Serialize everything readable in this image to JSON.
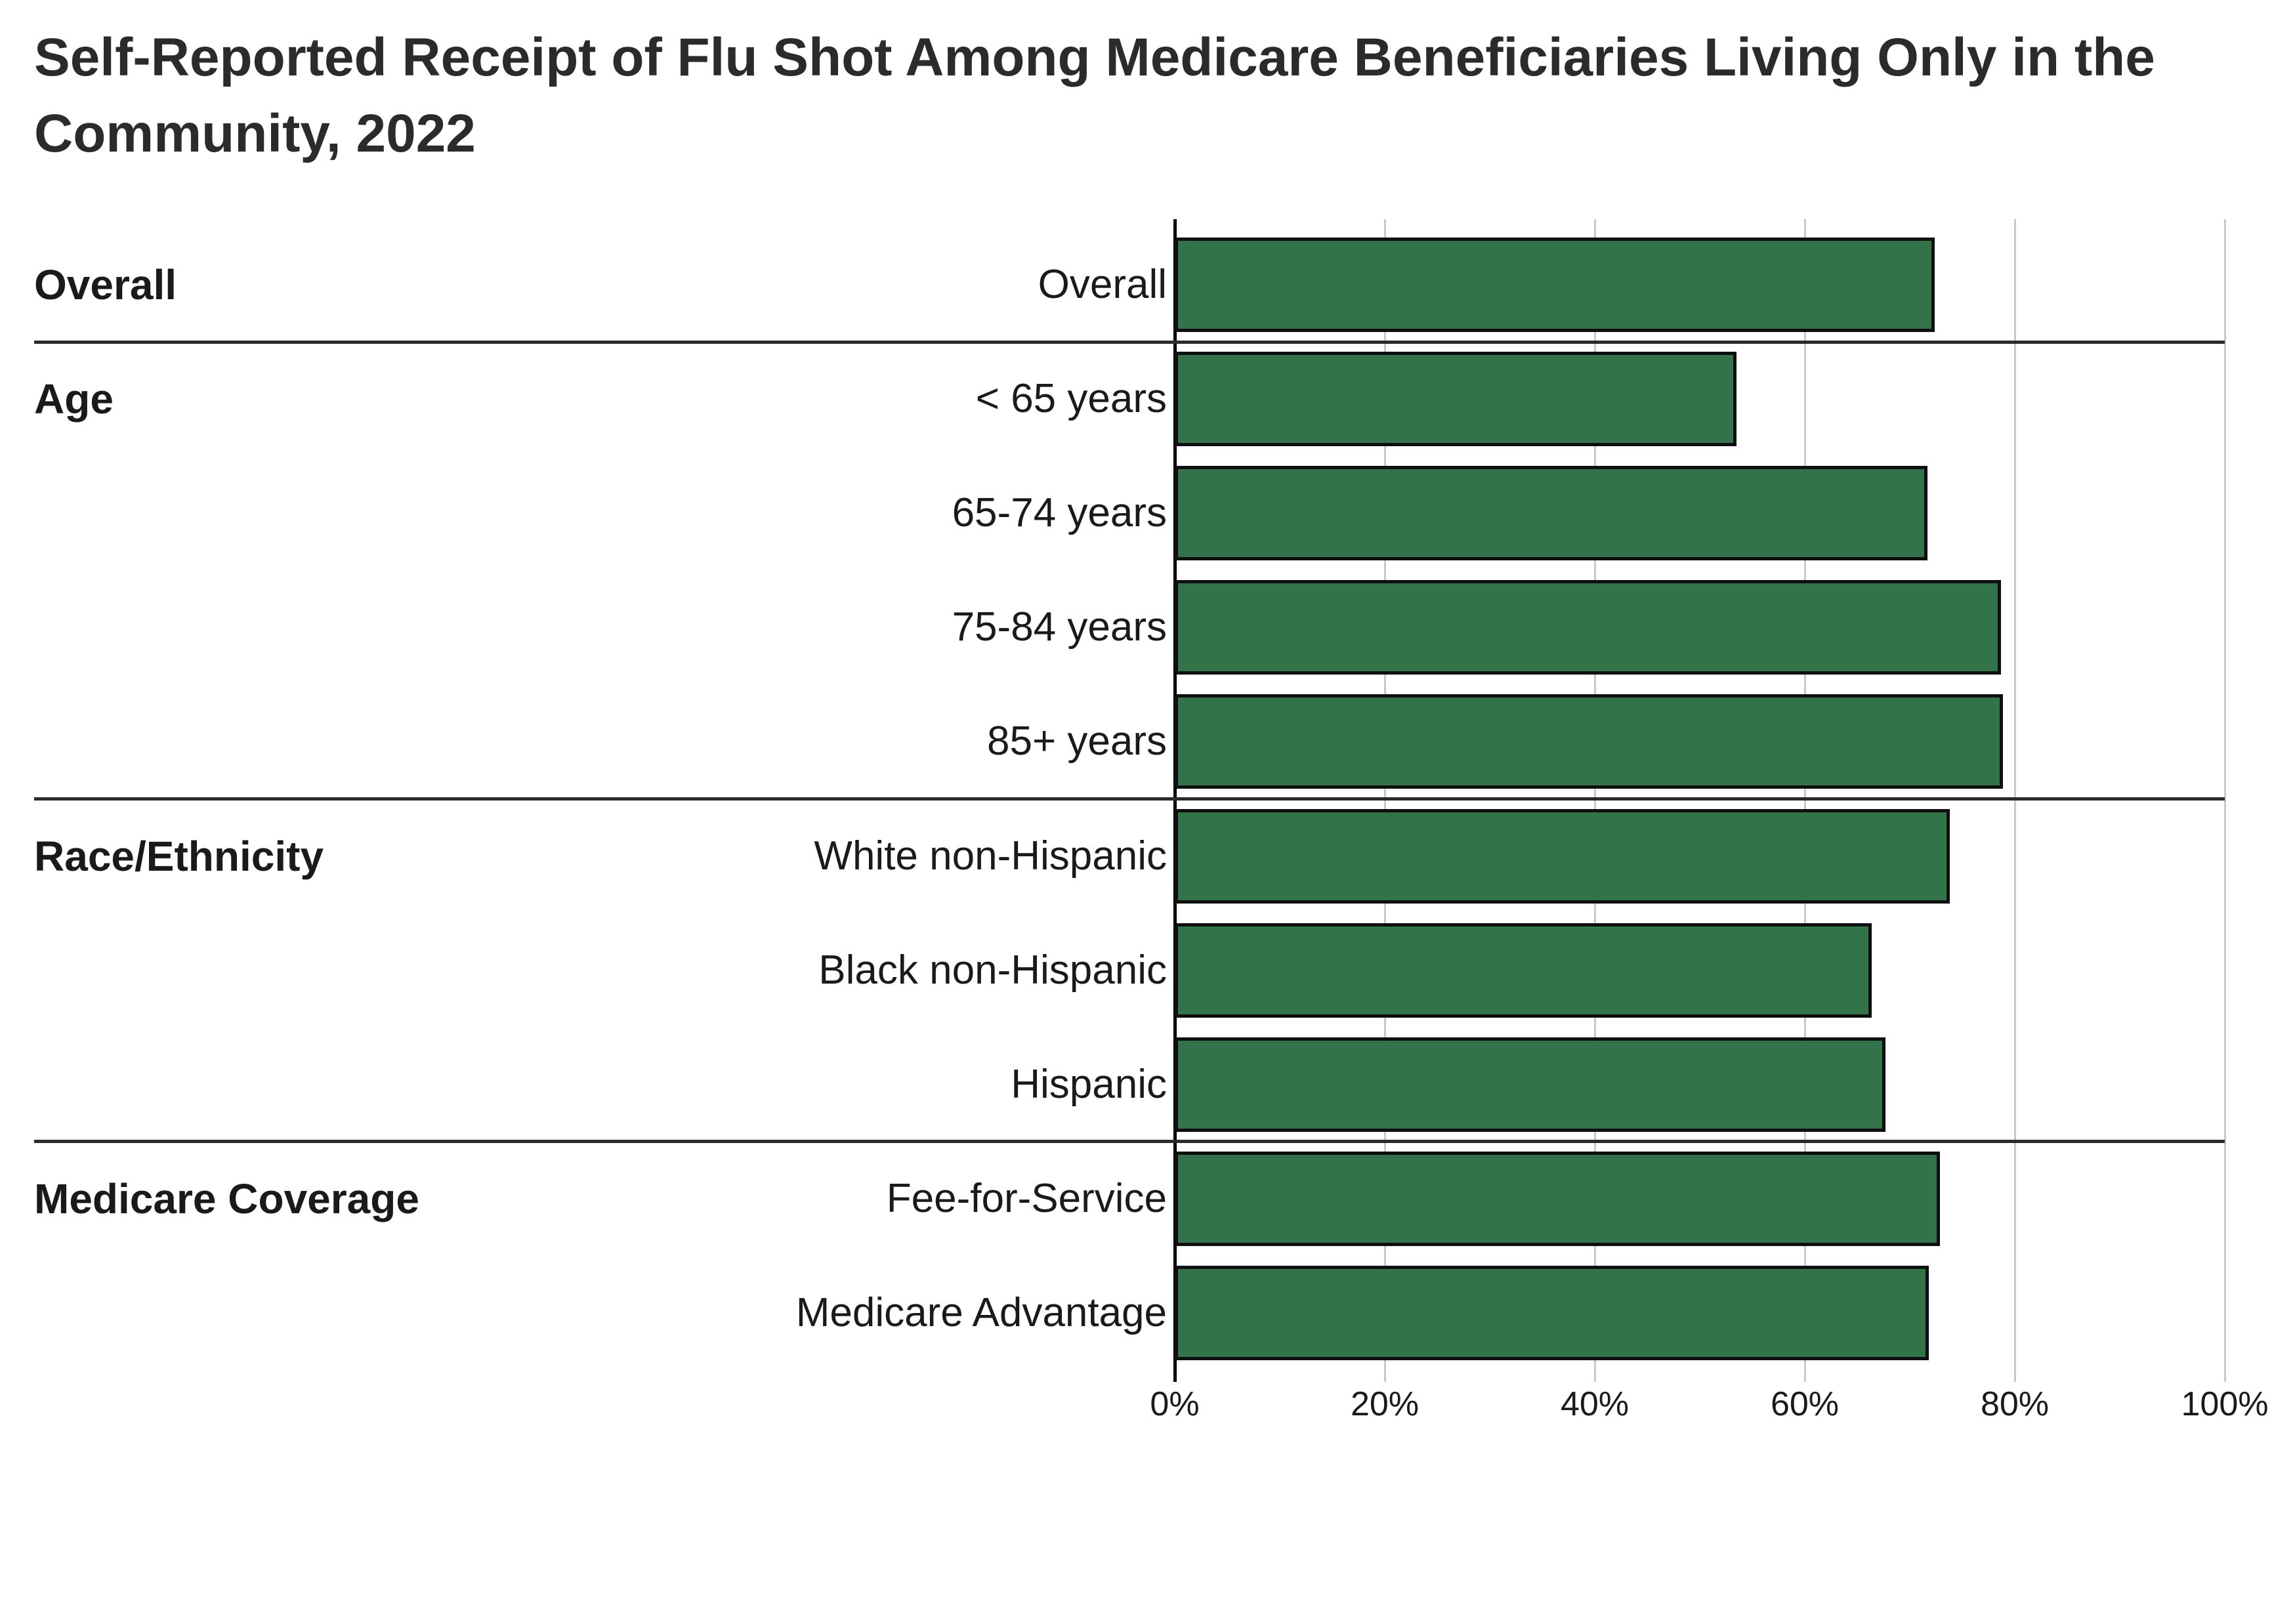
{
  "title": "Self-Reported Receipt of Flu Shot Among Medicare Beneficiaries Living Only in the Community, 2022",
  "title_lines": [
    "Self-Reported Receipt of Flu Shot Among Medicare Beneficiaries Living Only in the",
    "Community, 2022"
  ],
  "colors": {
    "background": "#FFFFFF",
    "bar_fill": "#327349",
    "bar_border": "#0F0F0F",
    "axis": "#000000",
    "gridline": "#C9C9C9",
    "separator": "#2B2B2B",
    "text": "#1A1A1A",
    "title_text": "#2B2B2B"
  },
  "chart_data": {
    "type": "bar",
    "orientation": "horizontal",
    "title": "Self-Reported Receipt of Flu Shot Among Medicare Beneficiaries Living Only in the Community, 2022",
    "xlabel": "",
    "ylabel": "",
    "xlim": [
      0,
      100
    ],
    "x_tick_labels": [
      "0%",
      "20%",
      "40%",
      "60%",
      "80%",
      "100%"
    ],
    "grid": true,
    "legend": false,
    "unit": "percent",
    "group_labels": [
      "Overall",
      "Age",
      "Race/Ethnicity",
      "Medicare Coverage"
    ],
    "group_sizes": [
      1,
      4,
      3,
      2
    ],
    "categories": [
      "Overall",
      "< 65 years",
      "65-74 years",
      "75-84 years",
      "85+ years",
      "White non-Hispanic",
      "Black non-Hispanic",
      "Hispanic",
      "Fee-for-Service",
      "Medicare Advantage"
    ],
    "values": [
      72.4,
      53.5,
      71.7,
      78.7,
      78.9,
      73.8,
      66.4,
      67.7,
      72.9,
      71.8
    ]
  }
}
